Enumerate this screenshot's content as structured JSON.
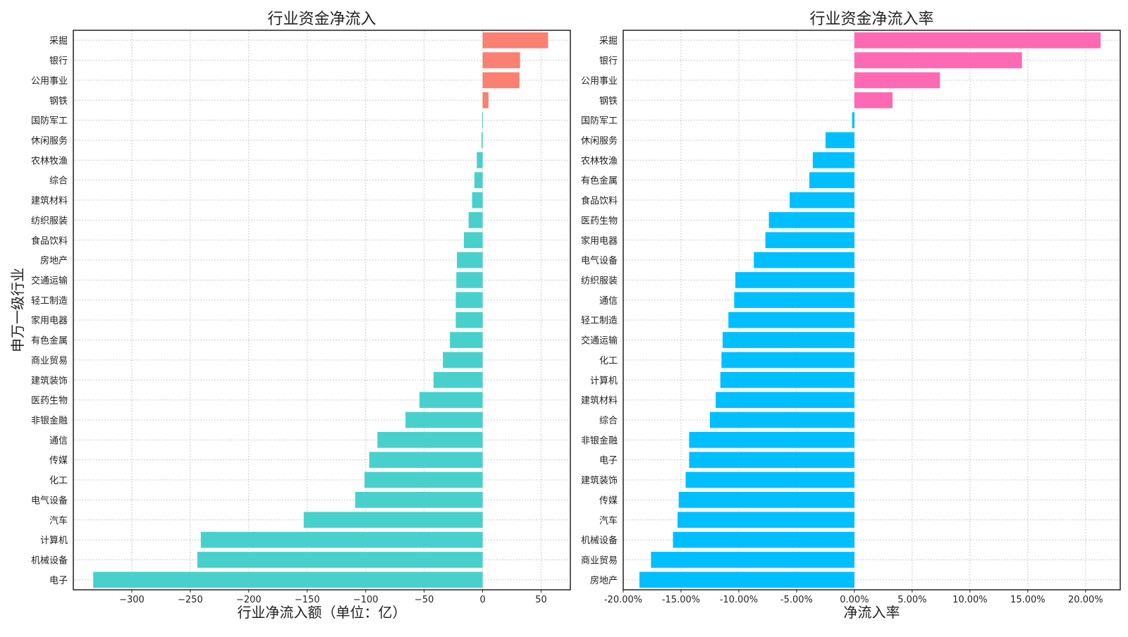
{
  "chart_data": [
    {
      "type": "bar",
      "orientation": "horizontal",
      "title": "行业资金净流入",
      "xlabel": "行业净流入额（单位：亿）",
      "ylabel": "申万一级行业",
      "xlim": [
        -350,
        75
      ],
      "xticks": [
        -300,
        -250,
        -200,
        -150,
        -100,
        -50,
        0,
        50
      ],
      "xtick_labels": [
        "−300",
        "−250",
        "−200",
        "−150",
        "−100",
        "−50",
        "0",
        "50"
      ],
      "grid": true,
      "categories": [
        "采掘",
        "银行",
        "公用事业",
        "钢铁",
        "国防军工",
        "休闲服务",
        "农林牧渔",
        "综合",
        "建筑材料",
        "纺织服装",
        "食品饮料",
        "房地产",
        "交通运输",
        "轻工制造",
        "家用电器",
        "有色金属",
        "商业贸易",
        "建筑装饰",
        "医药生物",
        "非银金融",
        "通信",
        "传媒",
        "化工",
        "电气设备",
        "汽车",
        "计算机",
        "机械设备",
        "电子"
      ],
      "values": [
        56,
        32,
        31.5,
        5,
        -0.5,
        -1,
        -5,
        -7,
        -9,
        -12,
        -16,
        -22,
        -22.5,
        -23,
        -23,
        -28,
        -34,
        -42,
        -54,
        -66,
        -90,
        -97,
        -101,
        -109,
        -153,
        -241,
        -244,
        -333
      ],
      "colors": {
        "positive": "#fa8072",
        "negative": "#48d1cc"
      }
    },
    {
      "type": "bar",
      "orientation": "horizontal",
      "title": "行业资金净流入率",
      "xlabel": "净流入率",
      "ylabel": "",
      "xlim": [
        -0.2,
        0.23
      ],
      "xticks": [
        -0.2,
        -0.15,
        -0.1,
        -0.05,
        0,
        0.05,
        0.1,
        0.15,
        0.2
      ],
      "xtick_labels": [
        "-20.00%",
        "-15.00%",
        "-10.00%",
        "-5.00%",
        "0.00%",
        "5.00%",
        "10.00%",
        "15.00%",
        "20.00%"
      ],
      "grid": true,
      "categories": [
        "采掘",
        "银行",
        "公用事业",
        "钢铁",
        "国防军工",
        "休闲服务",
        "农林牧渔",
        "有色金属",
        "食品饮料",
        "医药生物",
        "家用电器",
        "电气设备",
        "纺织服装",
        "通信",
        "轻工制造",
        "交通运输",
        "化工",
        "计算机",
        "建筑材料",
        "综合",
        "非银金融",
        "电子",
        "建筑装饰",
        "传媒",
        "汽车",
        "机械设备",
        "商业贸易",
        "房地产"
      ],
      "values": [
        0.213,
        0.145,
        0.074,
        0.033,
        -0.002,
        -0.025,
        -0.036,
        -0.039,
        -0.056,
        -0.074,
        -0.077,
        -0.087,
        -0.103,
        -0.104,
        -0.109,
        -0.114,
        -0.115,
        -0.116,
        -0.12,
        -0.125,
        -0.143,
        -0.143,
        -0.146,
        -0.152,
        -0.153,
        -0.157,
        -0.176,
        -0.186
      ],
      "colors": {
        "positive": "#ff69b4",
        "negative": "#00bfff"
      }
    }
  ]
}
